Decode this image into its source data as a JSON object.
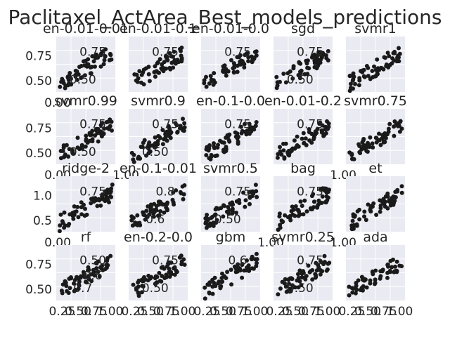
{
  "chart_data": [
    {
      "type": "scatter",
      "title": "Paclitaxel_ActArea_Best_models_predictions",
      "grid": true,
      "background": "#EAEAF2",
      "marker_color": "#1a1a1a",
      "rows": 4,
      "cols": 5,
      "ylim": [
        0.45,
        0.9
      ],
      "subplots": [
        {
          "title": "en-0.01-0.01",
          "xlim": [
            0.15,
            0.95
          ],
          "ylim": [
            0.45,
            0.9
          ],
          "yticks": [
            "0.75",
            "0.50"
          ],
          "xticks": [
            "0.00"
          ],
          "inset_labels": [
            "0.75",
            "0.50"
          ],
          "n_points": 60
        },
        {
          "title": "en-0.01-0.1",
          "xlim": [
            0.15,
            0.95
          ],
          "ylim": [
            0.45,
            0.9
          ],
          "yticks": [],
          "xticks": [],
          "inset_labels": [
            "0.75"
          ],
          "n_points": 60
        },
        {
          "title": "en-0.01-0.0",
          "xlim": [
            0.15,
            0.95
          ],
          "ylim": [
            0.45,
            0.9
          ],
          "yticks": [],
          "xticks": [],
          "inset_labels": [
            "0.75"
          ],
          "n_points": 60
        },
        {
          "title": "sgd",
          "xlim": [
            0.15,
            0.95
          ],
          "ylim": [
            0.45,
            0.9
          ],
          "yticks": [],
          "xticks": [],
          "inset_labels": [
            "0.75",
            "0.50"
          ],
          "n_points": 60
        },
        {
          "title": "svmr1",
          "xlim": [
            0.15,
            0.95
          ],
          "ylim": [
            0.45,
            0.9
          ],
          "yticks": [],
          "xticks": [],
          "inset_labels": [],
          "n_points": 60
        },
        {
          "title": "svmr0.99",
          "xlim": [
            0.15,
            0.95
          ],
          "ylim": [
            0.45,
            0.9
          ],
          "yticks": [
            "0.75",
            "0.50"
          ],
          "xticks": [
            "0.00"
          ],
          "inset_labels": [
            "0.75",
            "0.50"
          ],
          "n_points": 60
        },
        {
          "title": "svmr0.9",
          "xlim": [
            0.15,
            0.95
          ],
          "ylim": [
            0.45,
            0.9
          ],
          "yticks": [],
          "xticks": [
            "1.00"
          ],
          "inset_labels": [
            "0.75",
            "0.50"
          ],
          "n_points": 60
        },
        {
          "title": "en-0.1-0.0",
          "xlim": [
            0.15,
            0.95
          ],
          "ylim": [
            0.45,
            0.9
          ],
          "yticks": [],
          "xticks": [],
          "inset_labels": [
            "0.75"
          ],
          "n_points": 60
        },
        {
          "title": "en-0.01-0.2",
          "xlim": [
            0.15,
            0.95
          ],
          "ylim": [
            0.45,
            0.9
          ],
          "yticks": [],
          "xticks": [],
          "inset_labels": [
            "0.75"
          ],
          "n_points": 60
        },
        {
          "title": "svmr0.75",
          "xlim": [
            0.15,
            0.95
          ],
          "ylim": [
            0.45,
            0.9
          ],
          "yticks": [],
          "xticks": [
            "1.00"
          ],
          "inset_labels": [],
          "n_points": 60
        },
        {
          "title": "ridge-2",
          "xlim": [
            0.15,
            0.95
          ],
          "ylim": [
            0.35,
            1.05
          ],
          "yticks": [
            "1.0",
            "0.5"
          ],
          "xticks": [
            "0.00"
          ],
          "inset_labels": [
            "0.75"
          ],
          "n_points": 60
        },
        {
          "title": "en-0.1-0.01",
          "xlim": [
            0.15,
            0.95
          ],
          "ylim": [
            0.35,
            1.05
          ],
          "yticks": [],
          "xticks": [],
          "inset_labels": [
            "0.8",
            "0.6"
          ],
          "n_points": 60
        },
        {
          "title": "svmr0.5",
          "xlim": [
            0.15,
            0.95
          ],
          "ylim": [
            0.35,
            1.05
          ],
          "yticks": [],
          "xticks": [],
          "inset_labels": [
            "0.75",
            "0.50"
          ],
          "n_points": 60
        },
        {
          "title": "bag",
          "xlim": [
            0.15,
            0.95
          ],
          "ylim": [
            0.35,
            1.05
          ],
          "yticks": [],
          "xticks": [
            "1.00"
          ],
          "inset_labels": [
            "0.75"
          ],
          "n_points": 60
        },
        {
          "title": "et",
          "xlim": [
            0.15,
            0.95
          ],
          "ylim": [
            0.35,
            1.05
          ],
          "yticks": [],
          "xticks": [
            "1.00"
          ],
          "inset_labels": [],
          "n_points": 60
        },
        {
          "title": "rf",
          "xlim": [
            0.15,
            0.95
          ],
          "ylim": [
            0.45,
            0.85
          ],
          "yticks": [
            "0.75",
            "0.50"
          ],
          "xticks": [
            "0.25",
            "0.50",
            "0.75",
            "1.00"
          ],
          "inset_labels": [
            "0.50",
            "0.7",
            "0.6"
          ],
          "n_points": 60
        },
        {
          "title": "en-0.2-0.0",
          "xlim": [
            0.15,
            0.95
          ],
          "ylim": [
            0.45,
            0.85
          ],
          "yticks": [],
          "xticks": [
            "0.25",
            "0.50",
            "0.75",
            "1.00"
          ],
          "inset_labels": [
            "0.75",
            "0.50"
          ],
          "n_points": 60
        },
        {
          "title": "gbm",
          "xlim": [
            0.15,
            0.95
          ],
          "ylim": [
            0.45,
            0.85
          ],
          "yticks": [],
          "xticks": [
            "0.25",
            "0.50",
            "0.75",
            "1.00"
          ],
          "inset_labels": [
            "0.6"
          ],
          "n_points": 60
        },
        {
          "title": "svmr0.25",
          "xlim": [
            0.15,
            0.95
          ],
          "ylim": [
            0.45,
            0.85
          ],
          "yticks": [],
          "xticks": [
            "0.25",
            "0.50",
            "0.75",
            "1.00"
          ],
          "inset_labels": [
            "0.75",
            "0.50"
          ],
          "n_points": 60
        },
        {
          "title": "ada",
          "xlim": [
            0.15,
            0.95
          ],
          "ylim": [
            0.45,
            0.85
          ],
          "yticks": [],
          "xticks": [
            "0.25",
            "0.50",
            "0.75",
            "1.00"
          ],
          "inset_labels": [],
          "n_points": 60
        }
      ]
    }
  ]
}
